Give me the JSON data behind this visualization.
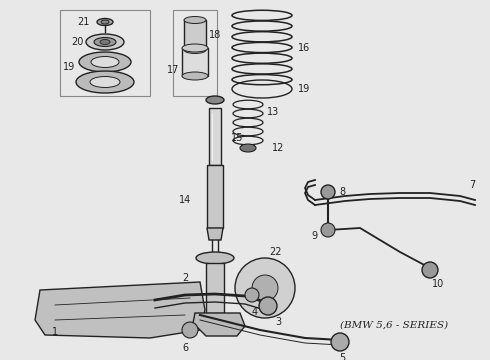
{
  "bg_color": "#e8e8e8",
  "line_color": "#222222",
  "bmw_series_label": "(BMW 5,6 - SERIES)",
  "fig_width": 4.9,
  "fig_height": 3.6,
  "dpi": 100
}
